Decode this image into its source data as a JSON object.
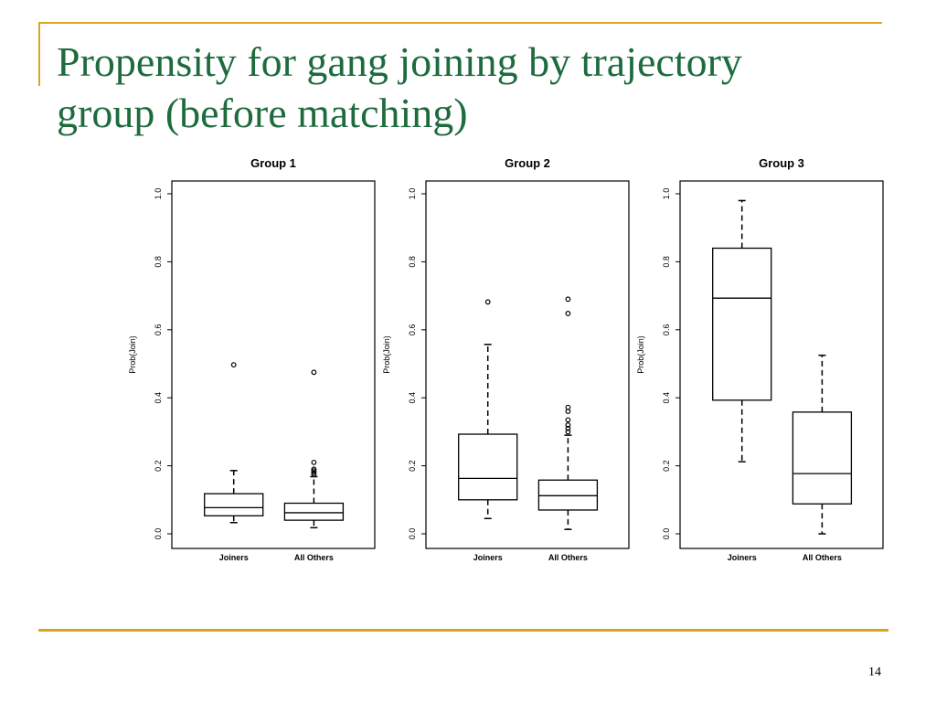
{
  "slide": {
    "title_lines": [
      "Propensity for gang joining by trajectory",
      "group (before matching)"
    ],
    "page_number": "14",
    "accent_color": "#DAA520",
    "title_color": "#1E6B3E"
  },
  "chart_data": [
    {
      "type": "box",
      "title": "Group 1",
      "ylabel": "Prob(Join)",
      "ylim": [
        0,
        1
      ],
      "yticks": [
        "0.0",
        "0.2",
        "0.4",
        "0.6",
        "0.8",
        "1.0"
      ],
      "categories": [
        "Joiners",
        "All Others"
      ],
      "boxes": [
        {
          "name": "Joiners",
          "whisker_low": 0.033,
          "q1": 0.053,
          "median": 0.077,
          "q3": 0.118,
          "whisker_high": 0.186,
          "outliers": [
            0.497
          ]
        },
        {
          "name": "All Others",
          "whisker_low": 0.018,
          "q1": 0.04,
          "median": 0.062,
          "q3": 0.09,
          "whisker_high": 0.168,
          "outliers": [
            0.175,
            0.18,
            0.185,
            0.19,
            0.21,
            0.475
          ]
        }
      ]
    },
    {
      "type": "box",
      "title": "Group 2",
      "ylabel": "Prob(Join)",
      "ylim": [
        0,
        1
      ],
      "yticks": [
        "0.0",
        "0.2",
        "0.4",
        "0.6",
        "0.8",
        "1.0"
      ],
      "categories": [
        "Joiners",
        "All Others"
      ],
      "boxes": [
        {
          "name": "Joiners",
          "whisker_low": 0.045,
          "q1": 0.1,
          "median": 0.163,
          "q3": 0.293,
          "whisker_high": 0.557,
          "outliers": [
            0.682
          ]
        },
        {
          "name": "All Others",
          "whisker_low": 0.013,
          "q1": 0.07,
          "median": 0.112,
          "q3": 0.158,
          "whisker_high": 0.29,
          "outliers": [
            0.3,
            0.31,
            0.32,
            0.335,
            0.36,
            0.372,
            0.648,
            0.69
          ]
        }
      ]
    },
    {
      "type": "box",
      "title": "Group 3",
      "ylabel": "Prob(Join)",
      "ylim": [
        0,
        1
      ],
      "yticks": [
        "0.0",
        "0.2",
        "0.4",
        "0.6",
        "0.8",
        "1.0"
      ],
      "categories": [
        "Joiners",
        "All Others"
      ],
      "boxes": [
        {
          "name": "Joiners",
          "whisker_low": 0.212,
          "q1": 0.393,
          "median": 0.693,
          "q3": 0.84,
          "whisker_high": 0.98,
          "outliers": []
        },
        {
          "name": "All Others",
          "whisker_low": 0.0,
          "q1": 0.088,
          "median": 0.177,
          "q3": 0.358,
          "whisker_high": 0.525,
          "outliers": []
        }
      ]
    }
  ]
}
